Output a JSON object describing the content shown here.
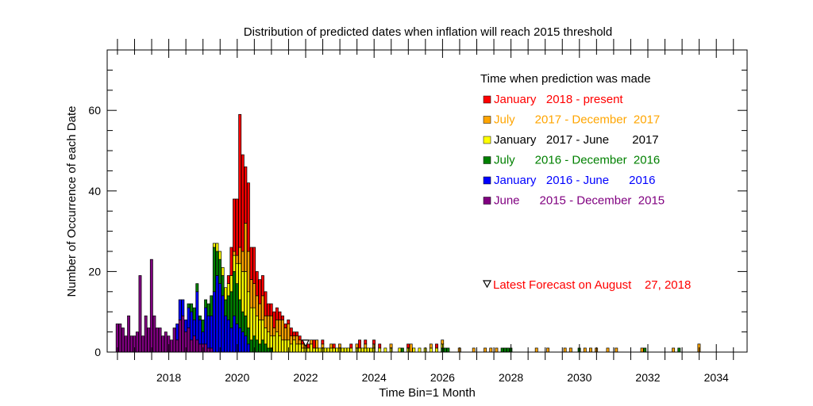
{
  "chart_data": {
    "type": "bar",
    "stacked": true,
    "title": "Distribution of predicted dates when inflation will reach 2015 threshold",
    "xlabel": "Time Bin=1 Month",
    "ylabel": "Number of Occurrence of each Date",
    "xlim": [
      2016.2,
      2034.9
    ],
    "ylim": [
      0,
      75
    ],
    "xticks": [
      2018,
      2020,
      2022,
      2024,
      2026,
      2028,
      2030,
      2032,
      2034
    ],
    "yticks": [
      0,
      20,
      40,
      60
    ],
    "bin_width_years": 0.0833,
    "grid": false,
    "legend": {
      "title": "Time when prediction was made",
      "placement": "top-right",
      "entries": [
        {
          "label": "January   2018 - present",
          "color": "#ff0000"
        },
        {
          "label": "July      2017 - December  2017",
          "color": "#ffa500"
        },
        {
          "label": "January   2017 - June       2017",
          "color": "#ffff00",
          "text_color": "#000000"
        },
        {
          "label": "July      2016 - December  2016",
          "color": "#008000"
        },
        {
          "label": "January   2016 - June      2016",
          "color": "#0000ff"
        },
        {
          "label": "June      2015 - December  2015",
          "color": "#800080"
        }
      ]
    },
    "annotation": {
      "label": "Latest Forecast on August    27, 2018",
      "color": "#ff0000",
      "marker": "triangle-down-icon",
      "marker_x": 2022.0,
      "marker_y": 2
    },
    "series": [
      {
        "name": "June      2015 - December  2015",
        "color": "#800080",
        "x": [
          2016.5,
          2016.583,
          2016.667,
          2016.75,
          2016.833,
          2016.917,
          2017.0,
          2017.083,
          2017.167,
          2017.25,
          2017.333,
          2017.417,
          2017.5,
          2017.583,
          2017.667,
          2017.75,
          2017.833,
          2017.917,
          2018.0,
          2018.083,
          2018.167,
          2018.25,
          2018.333,
          2018.417,
          2018.5,
          2018.583,
          2018.667,
          2018.75,
          2018.833,
          2018.917,
          2019.0,
          2019.083,
          2019.167,
          2019.25
        ],
        "values": [
          7,
          7,
          6,
          4,
          9,
          4,
          4,
          5,
          19,
          4,
          9,
          6,
          23,
          9,
          6,
          6,
          4,
          5,
          4,
          3,
          6,
          3,
          8,
          9,
          5,
          6,
          3,
          4,
          3,
          2,
          2,
          2,
          1,
          1
        ]
      },
      {
        "name": "January   2016 - June      2016",
        "color": "#0000ff",
        "x": [
          2018.25,
          2018.333,
          2018.417,
          2018.5,
          2018.583,
          2018.667,
          2018.75,
          2018.833,
          2018.917,
          2019.0,
          2019.083,
          2019.167,
          2019.25,
          2019.333,
          2019.417,
          2019.5,
          2019.583,
          2019.667,
          2019.75,
          2019.833,
          2019.917,
          2020.0,
          2020.083,
          2020.167,
          2020.25,
          2020.333
        ],
        "values": [
          4,
          5,
          4,
          3,
          5,
          7,
          4,
          12,
          6,
          3,
          9,
          8,
          8,
          15,
          19,
          17,
          14,
          9,
          8,
          6,
          9,
          7,
          6,
          5,
          4,
          2
        ]
      },
      {
        "name": "July      2016 - December  2016",
        "color": "#008000",
        "x": [
          2018.583,
          2018.667,
          2018.75,
          2018.833,
          2018.917,
          2019.0,
          2019.083,
          2019.167,
          2019.25,
          2019.333,
          2019.417,
          2019.5,
          2019.583,
          2019.667,
          2019.75,
          2019.833,
          2019.917,
          2020.0,
          2020.083,
          2020.167,
          2020.25,
          2020.333,
          2020.417,
          2020.5,
          2020.583,
          2020.667,
          2020.75,
          2020.833,
          2020.917,
          2021.0,
          2024.833,
          2026.0,
          2026.083,
          2026.167,
          2027.75,
          2027.833,
          2027.917,
          2028.0,
          2030.0,
          2031.917,
          2032.917
        ],
        "values": [
          1,
          2,
          3,
          2,
          1,
          3,
          2,
          3,
          5,
          11,
          6,
          6,
          5,
          4,
          6,
          9,
          11,
          10,
          7,
          5,
          5,
          4,
          3,
          4,
          3,
          2,
          3,
          2,
          1,
          1,
          1,
          1,
          1,
          1,
          1,
          1,
          1,
          1,
          1,
          1,
          1
        ]
      },
      {
        "name": "January   2017 - June       2017",
        "color": "#ffff00",
        "x": [
          2019.333,
          2019.417,
          2019.5,
          2019.583,
          2019.667,
          2019.75,
          2019.833,
          2019.917,
          2020.0,
          2020.083,
          2020.167,
          2020.25,
          2020.333,
          2020.417,
          2020.5,
          2020.583,
          2020.667,
          2020.75,
          2020.833,
          2020.917,
          2021.0,
          2021.083,
          2021.167,
          2021.25,
          2021.333,
          2021.417,
          2021.5,
          2021.583,
          2021.667,
          2021.75,
          2021.833,
          2021.917,
          2022.0,
          2022.083,
          2022.167,
          2022.25,
          2022.333,
          2022.417,
          2022.5,
          2022.583,
          2022.667,
          2022.75,
          2022.833,
          2022.917,
          2023.0,
          2023.083,
          2023.167,
          2023.25,
          2023.333,
          2023.5,
          2023.583,
          2023.667,
          2023.75,
          2023.833,
          2023.917,
          2024.0,
          2024.167,
          2024.333,
          2024.5,
          2024.75,
          2025.0,
          2025.167,
          2025.333,
          2025.5,
          2025.667,
          2025.833,
          2026.0
        ],
        "values": [
          1,
          2,
          2,
          2,
          3,
          3,
          4,
          4,
          5,
          9,
          10,
          11,
          9,
          8,
          7,
          6,
          6,
          5,
          4,
          4,
          3,
          4,
          5,
          4,
          3,
          3,
          3,
          2,
          3,
          2,
          2,
          1,
          1,
          1,
          2,
          1,
          1,
          1,
          1,
          1,
          1,
          1,
          1,
          1,
          1,
          1,
          1,
          1,
          1,
          1,
          1,
          1,
          1,
          1,
          1,
          1,
          1,
          1,
          1,
          1,
          1,
          1,
          1,
          1,
          1,
          1,
          1
        ]
      },
      {
        "name": "July      2017 - December  2017",
        "color": "#ffa500",
        "x": [
          2019.917,
          2020.0,
          2020.083,
          2020.167,
          2020.25,
          2020.333,
          2020.417,
          2020.5,
          2020.583,
          2020.667,
          2020.75,
          2020.833,
          2020.917,
          2021.0,
          2021.083,
          2021.167,
          2021.25,
          2021.333,
          2021.417,
          2021.5,
          2021.583,
          2021.667,
          2021.75,
          2021.833,
          2021.917,
          2022.0,
          2022.167,
          2022.333,
          2022.5,
          2022.75,
          2023.0,
          2023.5,
          2023.75,
          2024.0,
          2024.5,
          2025.083,
          2025.667,
          2026.0,
          2026.5,
          2026.917,
          2027.25,
          2027.417,
          2027.583,
          2028.75,
          2029.083,
          2029.583,
          2029.75,
          2030.167,
          2030.333,
          2030.5,
          2030.833,
          2031.083,
          2031.833,
          2032.75,
          2033.5
        ],
        "values": [
          1,
          2,
          4,
          5,
          12,
          10,
          7,
          6,
          5,
          4,
          6,
          3,
          4,
          5,
          2,
          3,
          4,
          5,
          3,
          4,
          2,
          1,
          2,
          1,
          1,
          2,
          1,
          2,
          1,
          1,
          1,
          1,
          1,
          1,
          1,
          2,
          1,
          1,
          1,
          1,
          1,
          1,
          1,
          1,
          1,
          1,
          1,
          1,
          1,
          1,
          1,
          1,
          1,
          1,
          2
        ]
      },
      {
        "name": "January   2018 - present",
        "color": "#ff0000",
        "x": [
          2019.75,
          2019.833,
          2019.917,
          2020.0,
          2020.083,
          2020.167,
          2020.25,
          2020.333,
          2020.417,
          2020.5,
          2020.583,
          2020.667,
          2020.75,
          2020.833,
          2020.917,
          2021.0,
          2021.083,
          2021.167,
          2021.25,
          2021.333,
          2021.417,
          2021.5,
          2021.583,
          2021.667,
          2021.75,
          2021.833,
          2021.917,
          2022.083,
          2022.25,
          2022.5,
          2022.833,
          2023.333,
          2023.583,
          2023.75,
          2024.0,
          2024.167,
          2025.0,
          2025.833
        ],
        "values": [
          2,
          7,
          13,
          14,
          33,
          24,
          14,
          17,
          8,
          9,
          6,
          6,
          5,
          6,
          3,
          3,
          4,
          3,
          2,
          1,
          1,
          1,
          2,
          1,
          1,
          1,
          1,
          1,
          2,
          1,
          1,
          1,
          2,
          1,
          1,
          1,
          1,
          1
        ]
      }
    ]
  }
}
